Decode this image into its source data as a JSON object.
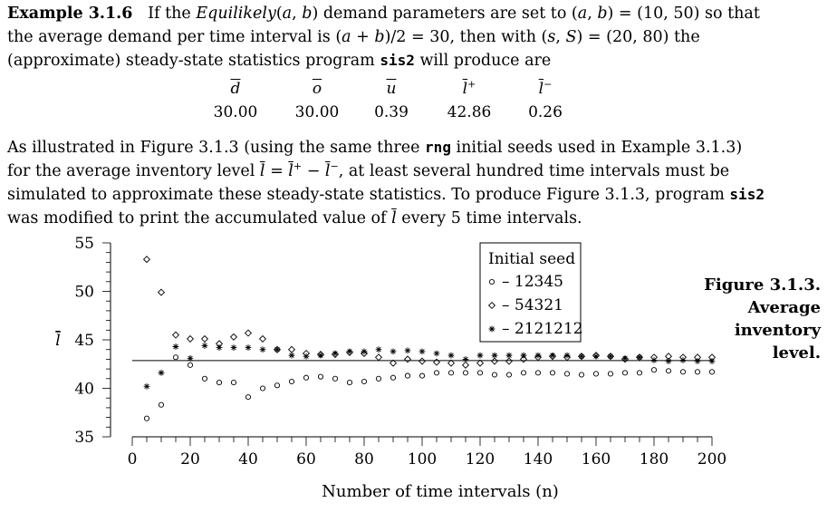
{
  "para1": {
    "heading": "Example 3.1.6",
    "t1": "If the ",
    "dist": "Equilikely",
    "t2": "(",
    "a1": "a",
    "t3": ", ",
    "b1": "b",
    "t4": ") demand parameters are set to (",
    "a2": "a",
    "t5": ", ",
    "b2": "b",
    "t6": ") = (10, 50) so that the average demand per time interval is (",
    "a3": "a",
    "t7": " + ",
    "b3": "b",
    "t8": ")/2 = 30, then with (",
    "s1": "s",
    "t9": ", ",
    "S1": "S",
    "t10": ") = (20, 80) the (approximate) steady-state statistics program ",
    "prog": "sis2",
    "t11": " will produce are"
  },
  "stats": {
    "headers": [
      "d",
      "o",
      "u",
      "l",
      "l"
    ],
    "header_sups": [
      "",
      "",
      "",
      "+",
      "−"
    ],
    "values": [
      "30.00",
      "30.00",
      "0.39",
      "42.86",
      "0.26"
    ]
  },
  "para2": {
    "t1": "As illustrated in Figure 3.1.3 (using the same three ",
    "rng": "rng",
    "t2": " initial seeds used in Example 3.1.3) for the average inventory level ",
    "l1": "l",
    "t3": " = ",
    "l2": "l",
    "sup1": "+",
    "t4": " − ",
    "l3": "l",
    "sup2": "−",
    "t5": ", at least several hundred time intervals must be simulated to approximate these steady-state statistics. To produce Figure 3.1.3, program ",
    "prog": "sis2",
    "t6": " was modified to print the accumulated value of ",
    "l4": "l",
    "t7": " every 5 time intervals."
  },
  "caption": {
    "line1": "Figure 3.1.3.",
    "line2": "Average",
    "line3": "inventory",
    "line4": "level."
  },
  "chart_data": {
    "type": "scatter",
    "xlabel": "Number of time intervals (n)",
    "ylabel": "l",
    "xlim": [
      0,
      200
    ],
    "ylim": [
      35,
      55
    ],
    "x_ticks": [
      "0",
      "20",
      "40",
      "60",
      "80",
      "100",
      "120",
      "140",
      "160",
      "180",
      "200"
    ],
    "y_ticks": [
      "35",
      "40",
      "45",
      "50",
      "55"
    ],
    "reference_line": 42.86,
    "legend_title": "Initial seed",
    "legend_position": "top-right",
    "x": [
      5,
      10,
      15,
      20,
      25,
      30,
      35,
      40,
      45,
      50,
      55,
      60,
      65,
      70,
      75,
      80,
      85,
      90,
      95,
      100,
      105,
      110,
      115,
      120,
      125,
      130,
      135,
      140,
      145,
      150,
      155,
      160,
      165,
      170,
      175,
      180,
      185,
      190,
      195,
      200
    ],
    "series": [
      {
        "name": "12345",
        "marker": "circle",
        "values": [
          36.9,
          38.3,
          43.2,
          42.4,
          41.0,
          40.6,
          40.6,
          39.1,
          40.0,
          40.3,
          40.7,
          41.1,
          41.2,
          41.0,
          40.6,
          40.7,
          41.0,
          41.1,
          41.3,
          41.3,
          41.6,
          41.6,
          41.6,
          41.6,
          41.4,
          41.4,
          41.6,
          41.6,
          41.6,
          41.5,
          41.4,
          41.5,
          41.5,
          41.6,
          41.6,
          41.9,
          41.8,
          41.7,
          41.7,
          41.7
        ]
      },
      {
        "name": "54321",
        "marker": "diamond",
        "values": [
          53.3,
          49.9,
          45.5,
          45.1,
          45.1,
          44.6,
          45.3,
          45.7,
          45.1,
          44.0,
          44.0,
          43.6,
          43.5,
          43.5,
          43.7,
          43.6,
          43.2,
          42.6,
          43.0,
          42.8,
          42.7,
          42.6,
          42.4,
          42.6,
          42.8,
          42.8,
          43.0,
          43.2,
          43.3,
          43.2,
          43.3,
          43.4,
          43.3,
          43.0,
          43.2,
          43.2,
          43.3,
          43.2,
          43.2,
          43.2
        ]
      },
      {
        "name": "2121212",
        "marker": "asterisk",
        "values": [
          40.2,
          41.6,
          44.3,
          43.1,
          44.4,
          44.2,
          44.2,
          44.2,
          44.0,
          44.0,
          43.4,
          43.3,
          43.4,
          43.6,
          43.8,
          43.8,
          44.0,
          43.8,
          43.9,
          43.8,
          43.6,
          43.4,
          43.0,
          43.4,
          43.4,
          43.4,
          43.4,
          43.4,
          43.4,
          43.4,
          43.3,
          43.3,
          43.3,
          43.1,
          43.2,
          42.9,
          42.8,
          42.9,
          42.8,
          42.8
        ]
      }
    ]
  }
}
